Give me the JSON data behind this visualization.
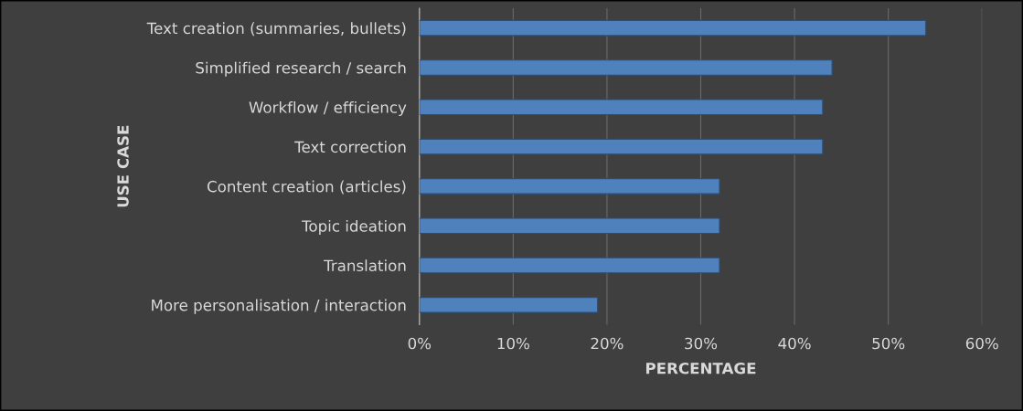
{
  "chart_data": {
    "type": "bar",
    "orientation": "horizontal",
    "xlabel": "PERCENTAGE",
    "ylabel": "USE CASE",
    "categories": [
      "Text creation (summaries, bullets)",
      "Simplified research / search",
      "Workflow / efficiency",
      "Text correction",
      "Content creation (articles)",
      "Topic ideation",
      "Translation",
      "More personalisation / interaction"
    ],
    "values": [
      54,
      44,
      43,
      43,
      32,
      32,
      32,
      19
    ],
    "color": "#4f81bd",
    "xlim": [
      0,
      60
    ],
    "xticks": [
      {
        "value": 0,
        "label": "0%"
      },
      {
        "value": 10,
        "label": "10%"
      },
      {
        "value": 20,
        "label": "20%"
      },
      {
        "value": 30,
        "label": "30%"
      },
      {
        "value": 40,
        "label": "40%"
      },
      {
        "value": 50,
        "label": "50%"
      },
      {
        "value": 60,
        "label": "60%"
      }
    ],
    "grid": "x"
  }
}
